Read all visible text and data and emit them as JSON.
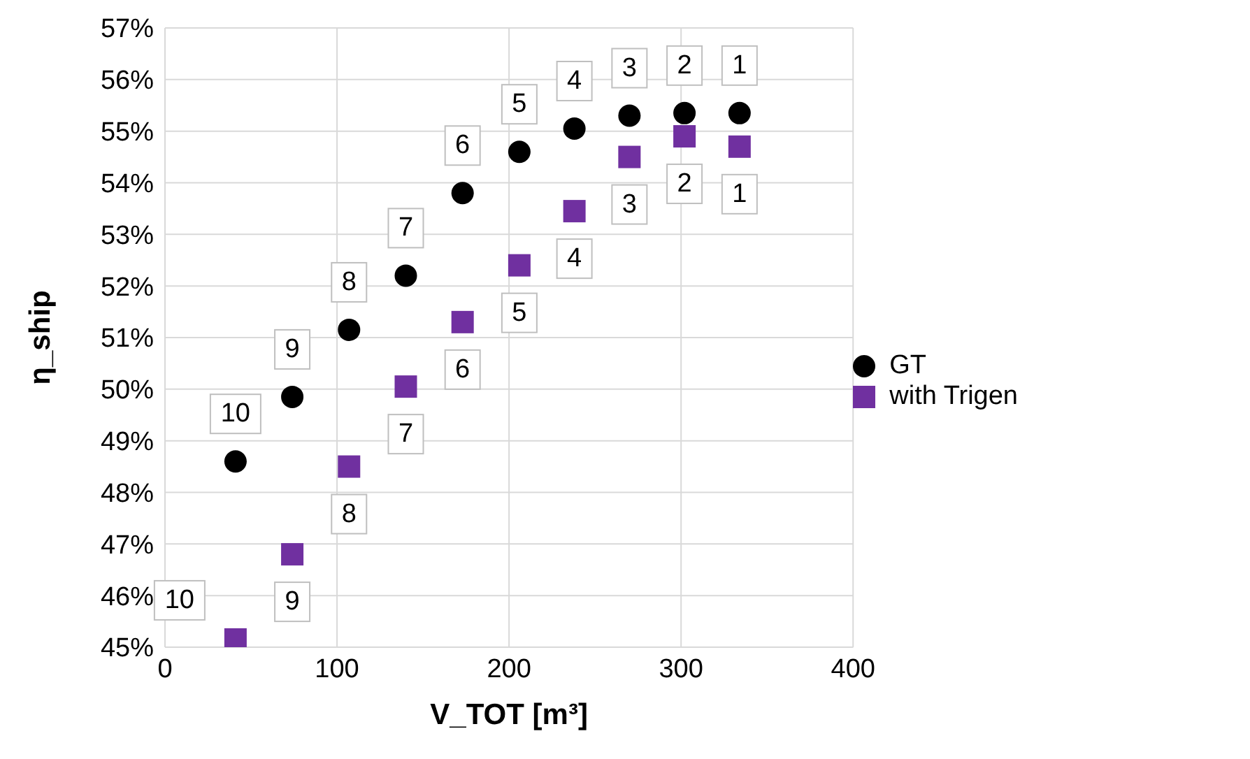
{
  "chart_data": {
    "type": "scatter",
    "xlabel": "V_TOT [m³]",
    "ylabel": "η_ship",
    "xlim": [
      0,
      400
    ],
    "xticks": [
      0,
      100,
      200,
      300,
      400
    ],
    "ylim": [
      45,
      57
    ],
    "yticks": [
      {
        "value": 45,
        "label": "45%"
      },
      {
        "value": 46,
        "label": "46%"
      },
      {
        "value": 47,
        "label": "47%"
      },
      {
        "value": 48,
        "label": "48%"
      },
      {
        "value": 49,
        "label": "49%"
      },
      {
        "value": 50,
        "label": "50%"
      },
      {
        "value": 51,
        "label": "51%"
      },
      {
        "value": 52,
        "label": "52%"
      },
      {
        "value": 53,
        "label": "53%"
      },
      {
        "value": 54,
        "label": "54%"
      },
      {
        "value": 55,
        "label": "55%"
      },
      {
        "value": 56,
        "label": "56%"
      },
      {
        "value": 57,
        "label": "57%"
      }
    ],
    "grid": true,
    "legend": "right",
    "series": [
      {
        "name": "GT",
        "color": "#000000",
        "marker": "circle",
        "x": [
          41,
          74,
          107,
          140,
          173,
          206,
          238,
          270,
          302,
          334
        ],
        "values": [
          48.6,
          49.85,
          51.15,
          52.2,
          53.8,
          54.6,
          55.05,
          55.3,
          55.35,
          55.35
        ]
      },
      {
        "name": "with Trigen",
        "color": "#7030a0",
        "marker": "square",
        "x": [
          41,
          74,
          107,
          140,
          173,
          206,
          238,
          270,
          302,
          334
        ],
        "values": [
          45.15,
          46.8,
          48.5,
          50.05,
          51.3,
          52.4,
          53.45,
          54.5,
          54.9,
          54.7
        ]
      }
    ],
    "annotations": [
      {
        "text": "10",
        "x": 41,
        "y": 48.6
      },
      {
        "text": "9",
        "x": 74,
        "y": 49.85
      },
      {
        "text": "8",
        "x": 107,
        "y": 51.15
      },
      {
        "text": "7",
        "x": 140,
        "y": 52.2
      },
      {
        "text": "6",
        "x": 173,
        "y": 53.8
      },
      {
        "text": "5",
        "x": 206,
        "y": 54.6
      },
      {
        "text": "4",
        "x": 238,
        "y": 55.05
      },
      {
        "text": "3",
        "x": 270,
        "y": 55.3
      },
      {
        "text": "2",
        "x": 302,
        "y": 55.35
      },
      {
        "text": "1",
        "x": 334,
        "y": 55.35
      },
      {
        "text": "10",
        "x": 41,
        "y": 45.15
      },
      {
        "text": "9",
        "x": 74,
        "y": 46.8
      },
      {
        "text": "8",
        "x": 107,
        "y": 48.5
      },
      {
        "text": "7",
        "x": 140,
        "y": 50.05
      },
      {
        "text": "6",
        "x": 173,
        "y": 51.3
      },
      {
        "text": "5",
        "x": 206,
        "y": 52.4
      },
      {
        "text": "4",
        "x": 238,
        "y": 53.45
      },
      {
        "text": "3",
        "x": 270,
        "y": 54.5
      },
      {
        "text": "2",
        "x": 302,
        "y": 54.9
      },
      {
        "text": "1",
        "x": 334,
        "y": 54.7
      }
    ]
  }
}
